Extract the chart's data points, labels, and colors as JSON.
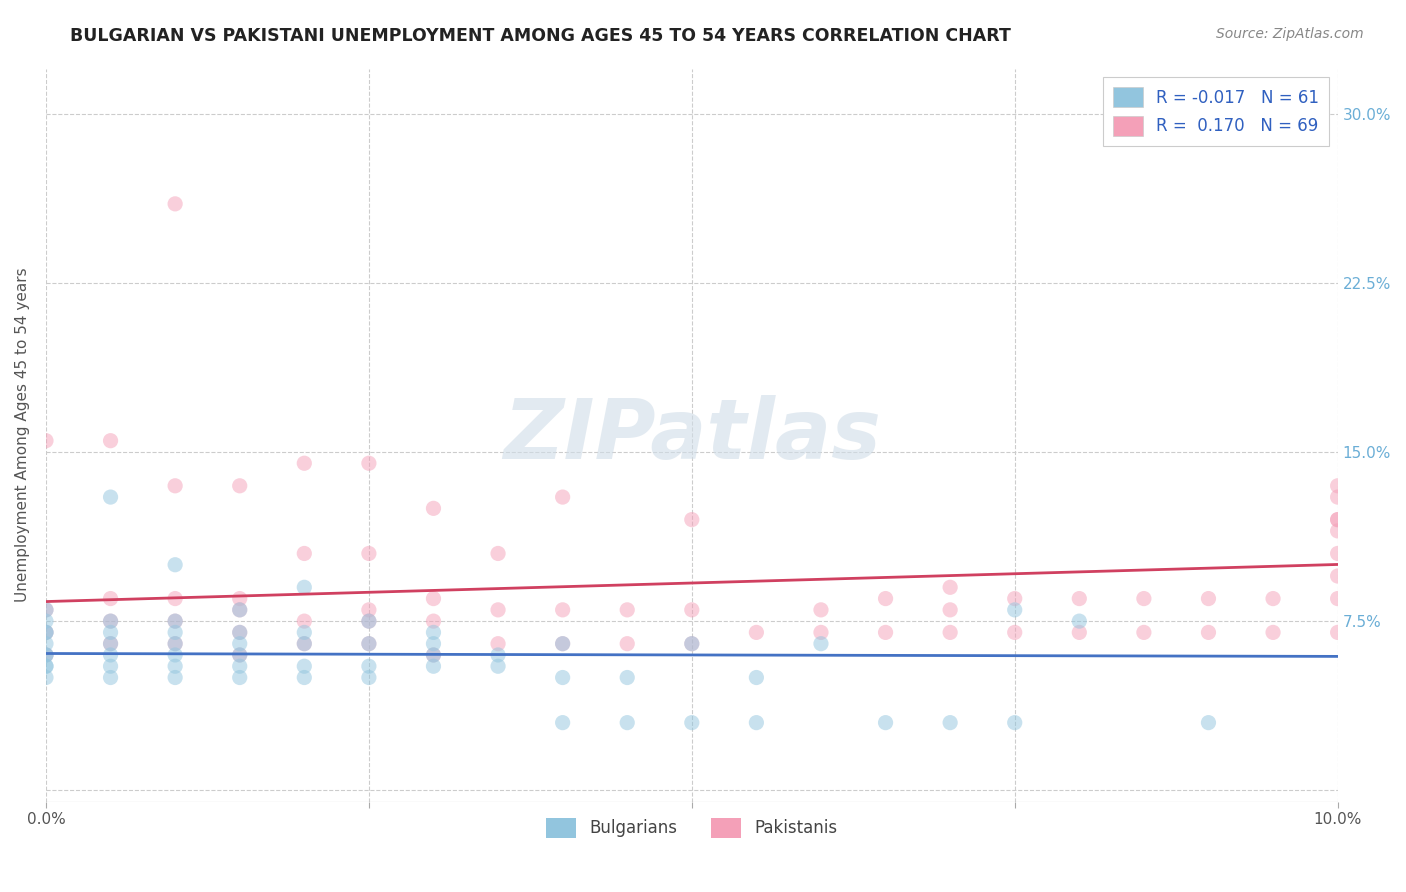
{
  "title": "BULGARIAN VS PAKISTANI UNEMPLOYMENT AMONG AGES 45 TO 54 YEARS CORRELATION CHART",
  "source_text": "Source: ZipAtlas.com",
  "ylabel": "Unemployment Among Ages 45 to 54 years",
  "xlim": [
    0.0,
    0.1
  ],
  "ylim": [
    -0.005,
    0.32
  ],
  "ytick_vals": [
    0.0,
    0.075,
    0.15,
    0.225,
    0.3
  ],
  "yticklabels_right": [
    "",
    "7.5%",
    "15.0%",
    "22.5%",
    "30.0%"
  ],
  "xtick_vals": [
    0.0,
    0.025,
    0.05,
    0.075,
    0.1
  ],
  "xticklabels": [
    "0.0%",
    "",
    "",
    "",
    "10.0%"
  ],
  "bulgarian_R": -0.017,
  "pakistani_R": 0.17,
  "bulgarian_N": 61,
  "pakistani_N": 69,
  "bg_color": "#ffffff",
  "grid_color": "#cccccc",
  "watermark": "ZIPatlas",
  "scatter_alpha": 0.5,
  "scatter_size": 120,
  "bulgarian_color": "#92c5de",
  "pakistani_color": "#f4a0b8",
  "trendline_bulgarian_color": "#4472c4",
  "trendline_pakistani_color": "#d04060",
  "tick_label_color_right": "#6baed6",
  "legend_label_color": "#3060c0",
  "bulgarian_points_x": [
    0.0,
    0.0,
    0.0,
    0.0,
    0.0,
    0.0,
    0.0,
    0.0,
    0.0,
    0.0,
    0.005,
    0.005,
    0.005,
    0.005,
    0.005,
    0.005,
    0.005,
    0.01,
    0.01,
    0.01,
    0.01,
    0.01,
    0.01,
    0.01,
    0.015,
    0.015,
    0.015,
    0.015,
    0.015,
    0.015,
    0.02,
    0.02,
    0.02,
    0.02,
    0.02,
    0.025,
    0.025,
    0.025,
    0.025,
    0.03,
    0.03,
    0.03,
    0.03,
    0.035,
    0.035,
    0.04,
    0.04,
    0.04,
    0.045,
    0.045,
    0.05,
    0.05,
    0.055,
    0.055,
    0.06,
    0.065,
    0.07,
    0.075,
    0.075,
    0.08,
    0.09
  ],
  "bulgarian_points_y": [
    0.05,
    0.055,
    0.06,
    0.06,
    0.065,
    0.07,
    0.07,
    0.075,
    0.08,
    0.055,
    0.05,
    0.055,
    0.06,
    0.065,
    0.07,
    0.075,
    0.13,
    0.05,
    0.055,
    0.06,
    0.065,
    0.07,
    0.075,
    0.1,
    0.05,
    0.055,
    0.06,
    0.065,
    0.07,
    0.08,
    0.05,
    0.055,
    0.065,
    0.07,
    0.09,
    0.05,
    0.055,
    0.065,
    0.075,
    0.055,
    0.06,
    0.065,
    0.07,
    0.055,
    0.06,
    0.03,
    0.05,
    0.065,
    0.03,
    0.05,
    0.03,
    0.065,
    0.03,
    0.05,
    0.065,
    0.03,
    0.03,
    0.03,
    0.08,
    0.075,
    0.03
  ],
  "pakistani_points_x": [
    0.0,
    0.0,
    0.0,
    0.0,
    0.005,
    0.005,
    0.005,
    0.005,
    0.01,
    0.01,
    0.01,
    0.01,
    0.01,
    0.015,
    0.015,
    0.015,
    0.015,
    0.015,
    0.02,
    0.02,
    0.02,
    0.02,
    0.025,
    0.025,
    0.025,
    0.025,
    0.025,
    0.03,
    0.03,
    0.03,
    0.03,
    0.035,
    0.035,
    0.035,
    0.04,
    0.04,
    0.04,
    0.045,
    0.045,
    0.05,
    0.05,
    0.05,
    0.055,
    0.06,
    0.06,
    0.065,
    0.065,
    0.07,
    0.07,
    0.07,
    0.075,
    0.075,
    0.08,
    0.08,
    0.085,
    0.085,
    0.09,
    0.09,
    0.095,
    0.095,
    0.1,
    0.1,
    0.1,
    0.1,
    0.1,
    0.1,
    0.1,
    0.1,
    0.1
  ],
  "pakistani_points_y": [
    0.06,
    0.07,
    0.08,
    0.155,
    0.065,
    0.075,
    0.085,
    0.155,
    0.065,
    0.075,
    0.085,
    0.135,
    0.26,
    0.06,
    0.07,
    0.08,
    0.085,
    0.135,
    0.065,
    0.075,
    0.105,
    0.145,
    0.065,
    0.075,
    0.08,
    0.105,
    0.145,
    0.06,
    0.075,
    0.085,
    0.125,
    0.065,
    0.08,
    0.105,
    0.065,
    0.08,
    0.13,
    0.065,
    0.08,
    0.065,
    0.08,
    0.12,
    0.07,
    0.07,
    0.08,
    0.07,
    0.085,
    0.07,
    0.08,
    0.09,
    0.07,
    0.085,
    0.07,
    0.085,
    0.07,
    0.085,
    0.07,
    0.085,
    0.07,
    0.085,
    0.07,
    0.085,
    0.095,
    0.105,
    0.115,
    0.12,
    0.13,
    0.135,
    0.12
  ]
}
